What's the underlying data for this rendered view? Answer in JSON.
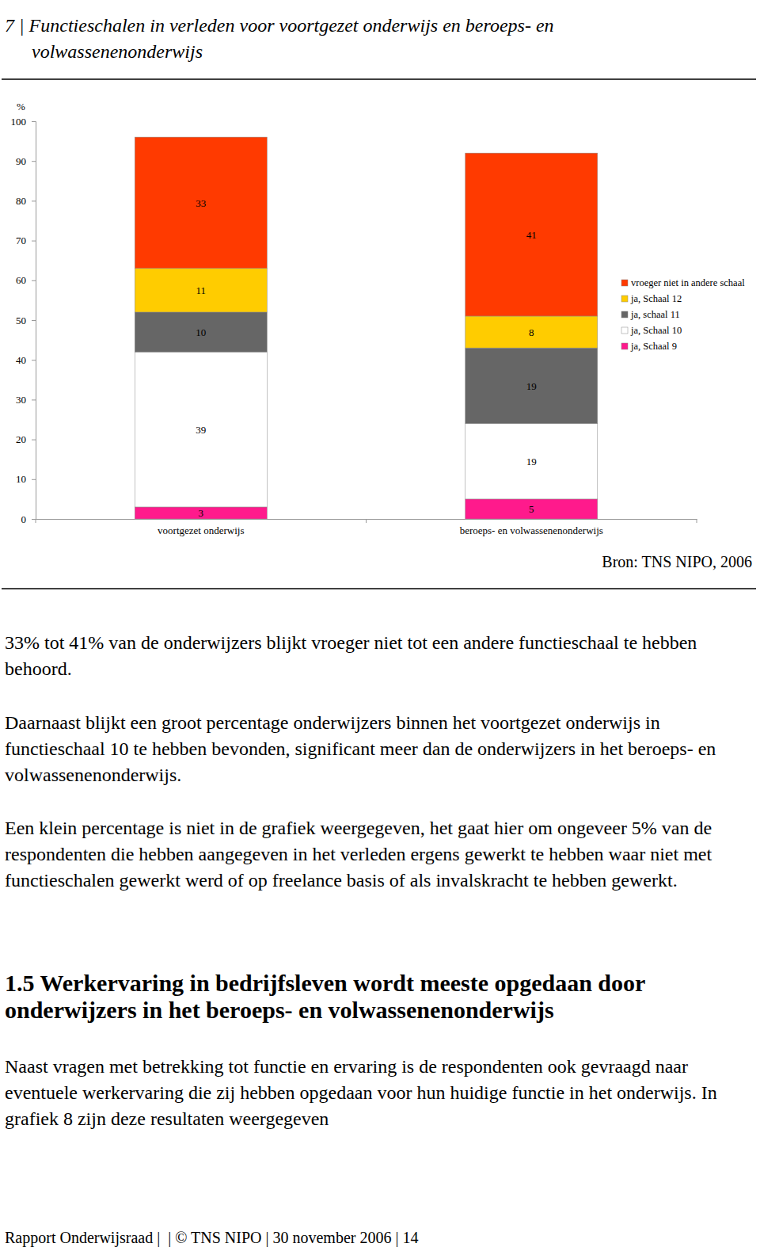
{
  "chart_data": {
    "type": "bar",
    "stacked": true,
    "data_labels": true,
    "legend": "right",
    "title": "7 | Functieschalen in verleden voor voortgezet onderwijs en beroeps- en volwassenenonderwijs",
    "ylabel": "%",
    "source": "Bron: TNS NIPO, 2006",
    "categories": [
      "voortgezet onderwijs",
      "beroeps- en volwassenenonderwijs"
    ],
    "ylim": [
      0,
      100
    ],
    "yticks": [
      0,
      10,
      20,
      30,
      40,
      50,
      60,
      70,
      80,
      90,
      100
    ],
    "series": [
      {
        "name": "ja, Schaal 9",
        "color": "#ff1a8c",
        "values": [
          3,
          5
        ]
      },
      {
        "name": "ja, Schaal 10",
        "color": "#ffffff",
        "values": [
          39,
          19
        ]
      },
      {
        "name": "ja, schaal 11",
        "color": "#666666",
        "values": [
          10,
          19
        ]
      },
      {
        "name": "ja, Schaal 12",
        "color": "#ffcc00",
        "values": [
          11,
          8
        ]
      },
      {
        "name": "vroeger niet in andere schaal",
        "color": "#ff3a00",
        "values": [
          33,
          41
        ]
      }
    ]
  },
  "document": {
    "paragraphs": [
      "33% tot 41% van de onderwijzers blijkt vroeger niet tot een andere functieschaal te hebben behoord.",
      "Daarnaast blijkt een groot percentage onderwijzers binnen het voortgezet onderwijs in functieschaal 10 te hebben bevonden, significant meer dan de onderwijzers in het beroeps- en volwassenenonderwijs.",
      "Een klein percentage is niet in de grafiek weergegeven, het gaat hier om ongeveer 5% van de respondenten die hebben aangegeven in het verleden ergens gewerkt te hebben waar niet met functieschalen gewerkt werd of op freelance basis of als invalskracht te hebben gewerkt."
    ],
    "heading": "1.5  Werkervaring in bedrijfsleven wordt meeste opgedaan door onderwijzers in het beroeps- en volwassenenonderwijs",
    "paragraphs_after": [
      "Naast vragen met betrekking tot functie en ervaring is de respondenten ook gevraagd naar eventuele werkervaring die zij hebben opgedaan voor hun huidige functie in het onderwijs. In grafiek 8 zijn deze resultaten weergegeven"
    ],
    "footer": "Rapport Onderwijsraad |  | © TNS NIPO | 30 november 2006 | 14"
  }
}
